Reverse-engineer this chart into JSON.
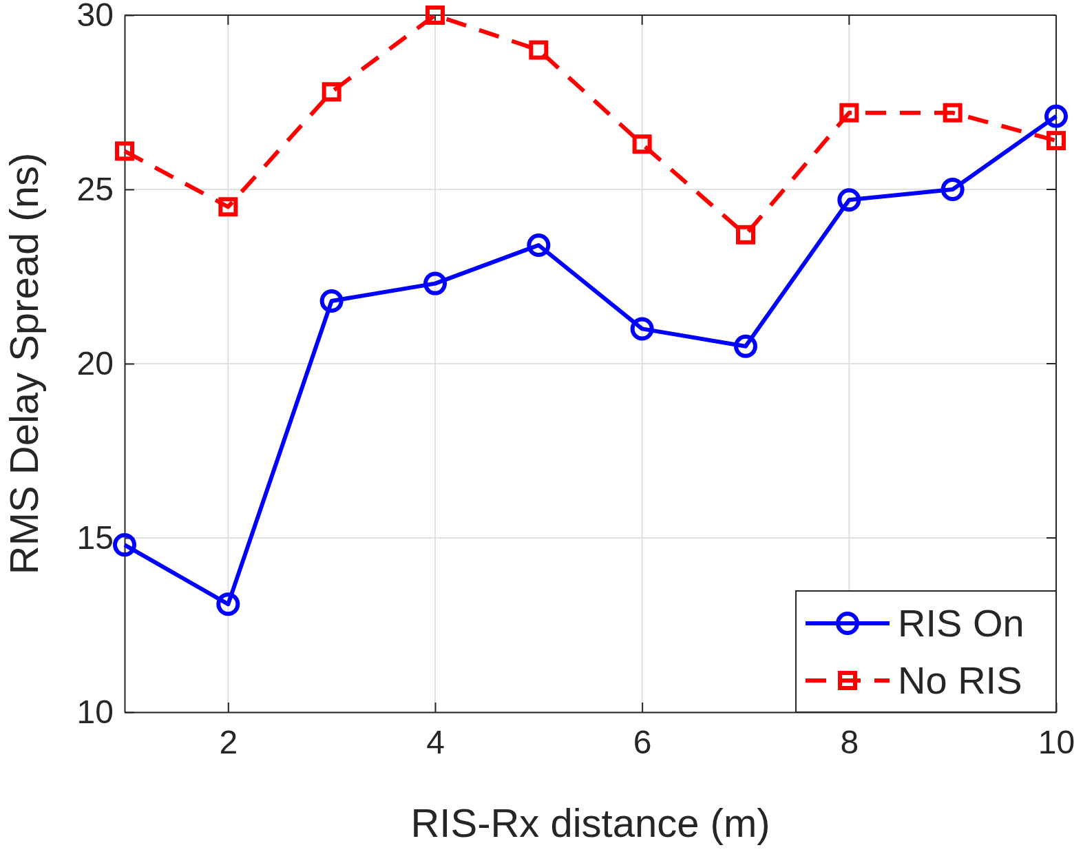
{
  "chart_data": {
    "type": "line",
    "xlabel": "RIS-Rx distance (m)",
    "ylabel": "RMS Delay Spread (ns)",
    "x": [
      1,
      2,
      3,
      4,
      5,
      6,
      7,
      8,
      9,
      10
    ],
    "series": [
      {
        "name": "RIS On",
        "color": "#0000ff",
        "marker": "circle",
        "line_style": "solid",
        "values": [
          14.8,
          13.1,
          21.8,
          22.3,
          23.4,
          21.0,
          20.5,
          24.7,
          25.0,
          27.1
        ]
      },
      {
        "name": "No RIS",
        "color": "#ff0000",
        "marker": "square",
        "line_style": "dashed",
        "values": [
          26.1,
          24.5,
          27.8,
          30.0,
          29.0,
          26.3,
          23.7,
          27.2,
          27.2,
          26.4
        ]
      }
    ],
    "xlim": [
      1,
      10
    ],
    "xticks": [
      2,
      4,
      6,
      8,
      10
    ],
    "ylim": [
      10,
      30
    ],
    "yticks": [
      10,
      15,
      20,
      25,
      30
    ],
    "grid": true,
    "legend": "bottom right"
  }
}
